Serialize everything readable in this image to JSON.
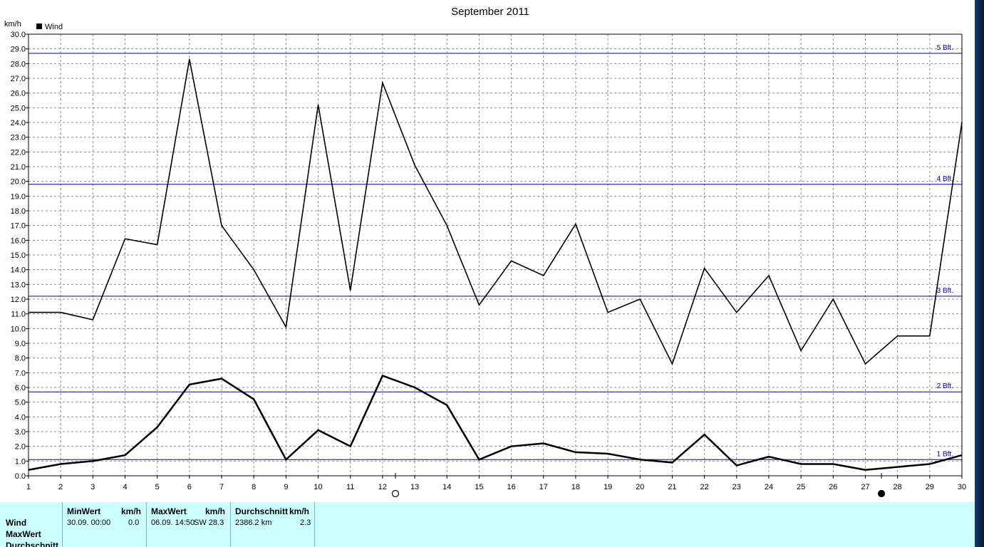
{
  "chart_data": {
    "type": "line",
    "title": "September 2011",
    "ylabel": "km/h",
    "ylim": [
      0,
      30
    ],
    "ytick_step": 1,
    "xlim": [
      1,
      30
    ],
    "x": [
      1,
      2,
      3,
      4,
      5,
      6,
      7,
      8,
      9,
      10,
      11,
      12,
      13,
      14,
      15,
      16,
      17,
      18,
      19,
      20,
      21,
      22,
      23,
      24,
      25,
      26,
      27,
      28,
      29,
      30
    ],
    "grid": true,
    "legend_position": "top-left",
    "legend": [
      {
        "label": "Wind",
        "color": "#000000"
      }
    ],
    "series": [
      {
        "role": "max",
        "color": "#000000",
        "values": [
          11.1,
          11.1,
          10.6,
          16.1,
          15.7,
          28.3,
          17.0,
          14.0,
          10.1,
          25.2,
          12.6,
          26.7,
          21.1,
          17.0,
          11.6,
          14.6,
          13.6,
          17.1,
          11.1,
          12.0,
          7.6,
          14.1,
          11.1,
          13.6,
          8.5,
          12.0,
          7.6,
          9.5,
          9.5,
          24.0
        ]
      },
      {
        "role": "average",
        "color": "#000000",
        "values": [
          0.4,
          0.8,
          1.0,
          1.4,
          3.3,
          6.2,
          6.6,
          5.2,
          1.1,
          3.1,
          2.0,
          6.8,
          6.0,
          4.8,
          1.1,
          2.0,
          2.2,
          1.6,
          1.5,
          1.1,
          0.9,
          2.8,
          0.7,
          1.3,
          0.8,
          0.8,
          0.4,
          0.6,
          0.8,
          1.4
        ]
      }
    ],
    "reference_lines": [
      {
        "label": "1 Bft.",
        "value": 1.1,
        "color": "#0000a0"
      },
      {
        "label": "2 Bft.",
        "value": 5.7,
        "color": "#0000a0"
      },
      {
        "label": "3 Bft.",
        "value": 12.2,
        "color": "#0000a0"
      },
      {
        "label": "4 Bft.",
        "value": 19.8,
        "color": "#0000a0"
      },
      {
        "label": "5 Bft.",
        "value": 28.7,
        "color": "#0000a0"
      }
    ],
    "moon_markers": [
      {
        "phase": "full-moon",
        "x": 12.4
      },
      {
        "phase": "new-moon",
        "x": 27.5
      }
    ]
  },
  "stats": {
    "row_labels": [
      "Wind",
      "MaxWert",
      "Durchschnitt"
    ],
    "min": {
      "header": "MinWert",
      "unit": "km/h",
      "datetime": "30.09.  00:00",
      "value": "0.0"
    },
    "max": {
      "header": "MaxWert",
      "unit": "km/h",
      "datetime": "06.09.  14:50",
      "value": "SW 28.3"
    },
    "avg": {
      "header": "Durchschnitt",
      "unit": "km/h",
      "distance": "2386.2 km",
      "value": "2.3"
    }
  }
}
